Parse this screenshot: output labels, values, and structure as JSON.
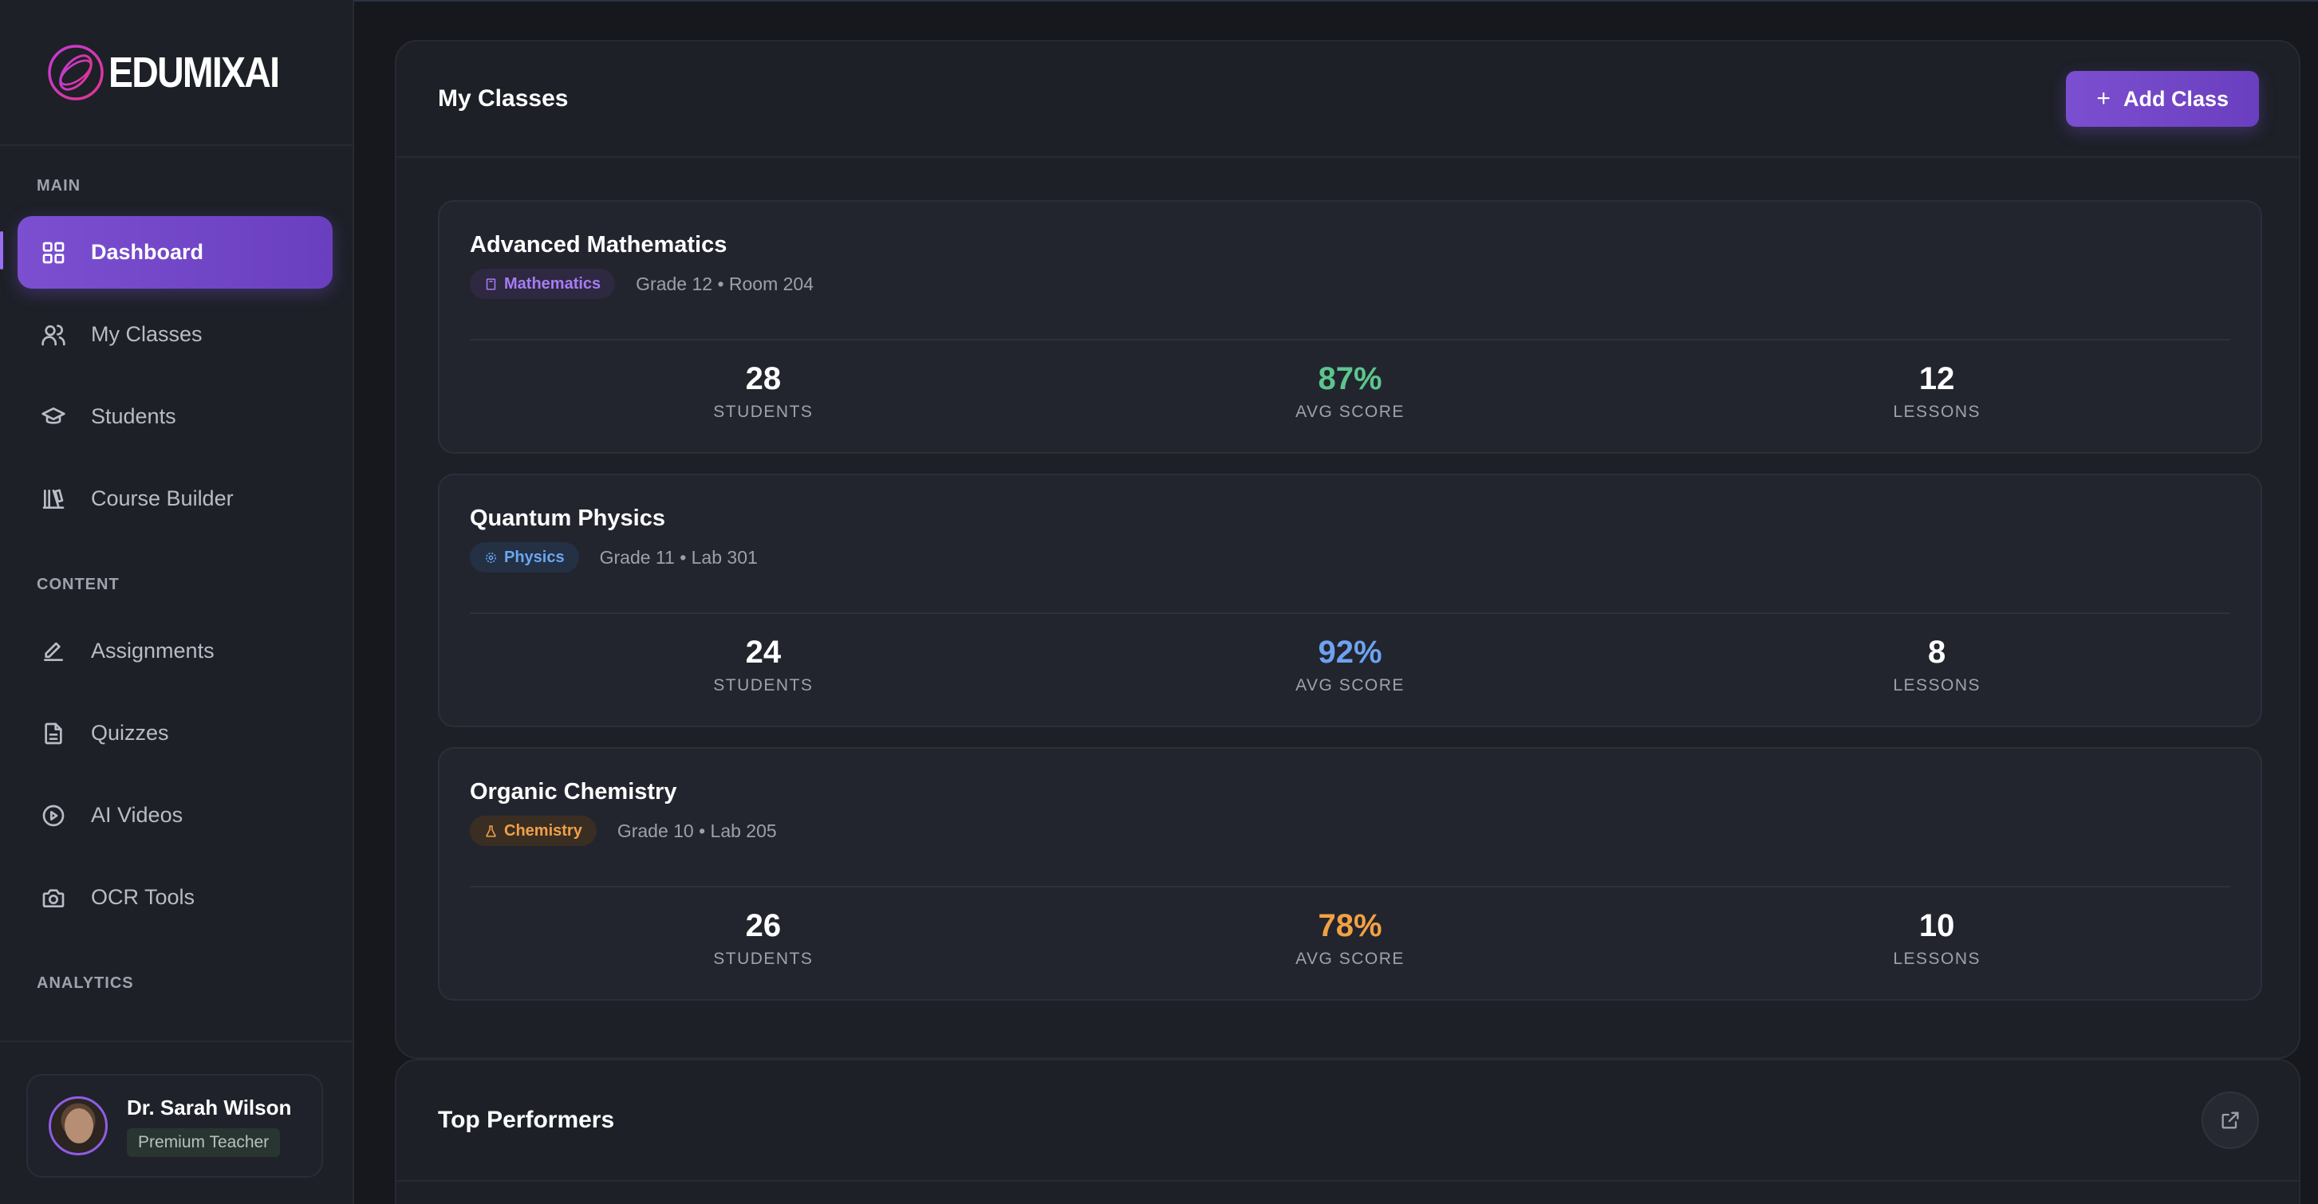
{
  "app": {
    "logo_text": "EDUMIXAI"
  },
  "sidebar": {
    "sections": {
      "main": "MAIN",
      "content": "CONTENT",
      "analytics": "ANALYTICS"
    },
    "items": [
      {
        "label": "Dashboard",
        "icon": "grid-icon",
        "active": true
      },
      {
        "label": "My Classes",
        "icon": "users-icon",
        "active": false
      },
      {
        "label": "Students",
        "icon": "graduation-cap-icon",
        "active": false
      },
      {
        "label": "Course Builder",
        "icon": "library-icon",
        "active": false
      },
      {
        "label": "Assignments",
        "icon": "pen-icon",
        "active": false
      },
      {
        "label": "Quizzes",
        "icon": "file-text-icon",
        "active": false
      },
      {
        "label": "AI Videos",
        "icon": "play-circle-icon",
        "active": false
      },
      {
        "label": "OCR Tools",
        "icon": "camera-icon",
        "active": false
      }
    ]
  },
  "user": {
    "name": "Dr. Sarah Wilson",
    "badge": "Premium Teacher"
  },
  "classes_panel": {
    "title": "My Classes",
    "add_button": "Add Class",
    "stat_labels": {
      "students": "STUDENTS",
      "avg_score": "AVG SCORE",
      "lessons": "LESSONS"
    },
    "classes": [
      {
        "name": "Advanced Mathematics",
        "subject": "Mathematics",
        "meta": "Grade 12 • Room 204",
        "students": "28",
        "avg_score": "87%",
        "lessons": "12",
        "tag_color": "#a67cf5",
        "tag_bg": "#2e2840",
        "score_color": "#5cc58d"
      },
      {
        "name": "Quantum Physics",
        "subject": "Physics",
        "meta": "Grade 11 • Lab 301",
        "students": "24",
        "avg_score": "92%",
        "lessons": "8",
        "tag_color": "#6aa6f2",
        "tag_bg": "#243043",
        "score_color": "#6ea2f0"
      },
      {
        "name": "Organic Chemistry",
        "subject": "Chemistry",
        "meta": "Grade 10 • Lab 205",
        "students": "26",
        "avg_score": "78%",
        "lessons": "10",
        "tag_color": "#f0a04a",
        "tag_bg": "#3a2e22",
        "score_color": "#f2a142"
      }
    ]
  },
  "performers_panel": {
    "title": "Top Performers"
  },
  "colors": {
    "accent": "#7b4fd0",
    "background": "#16181e",
    "panel": "#1d2027"
  }
}
